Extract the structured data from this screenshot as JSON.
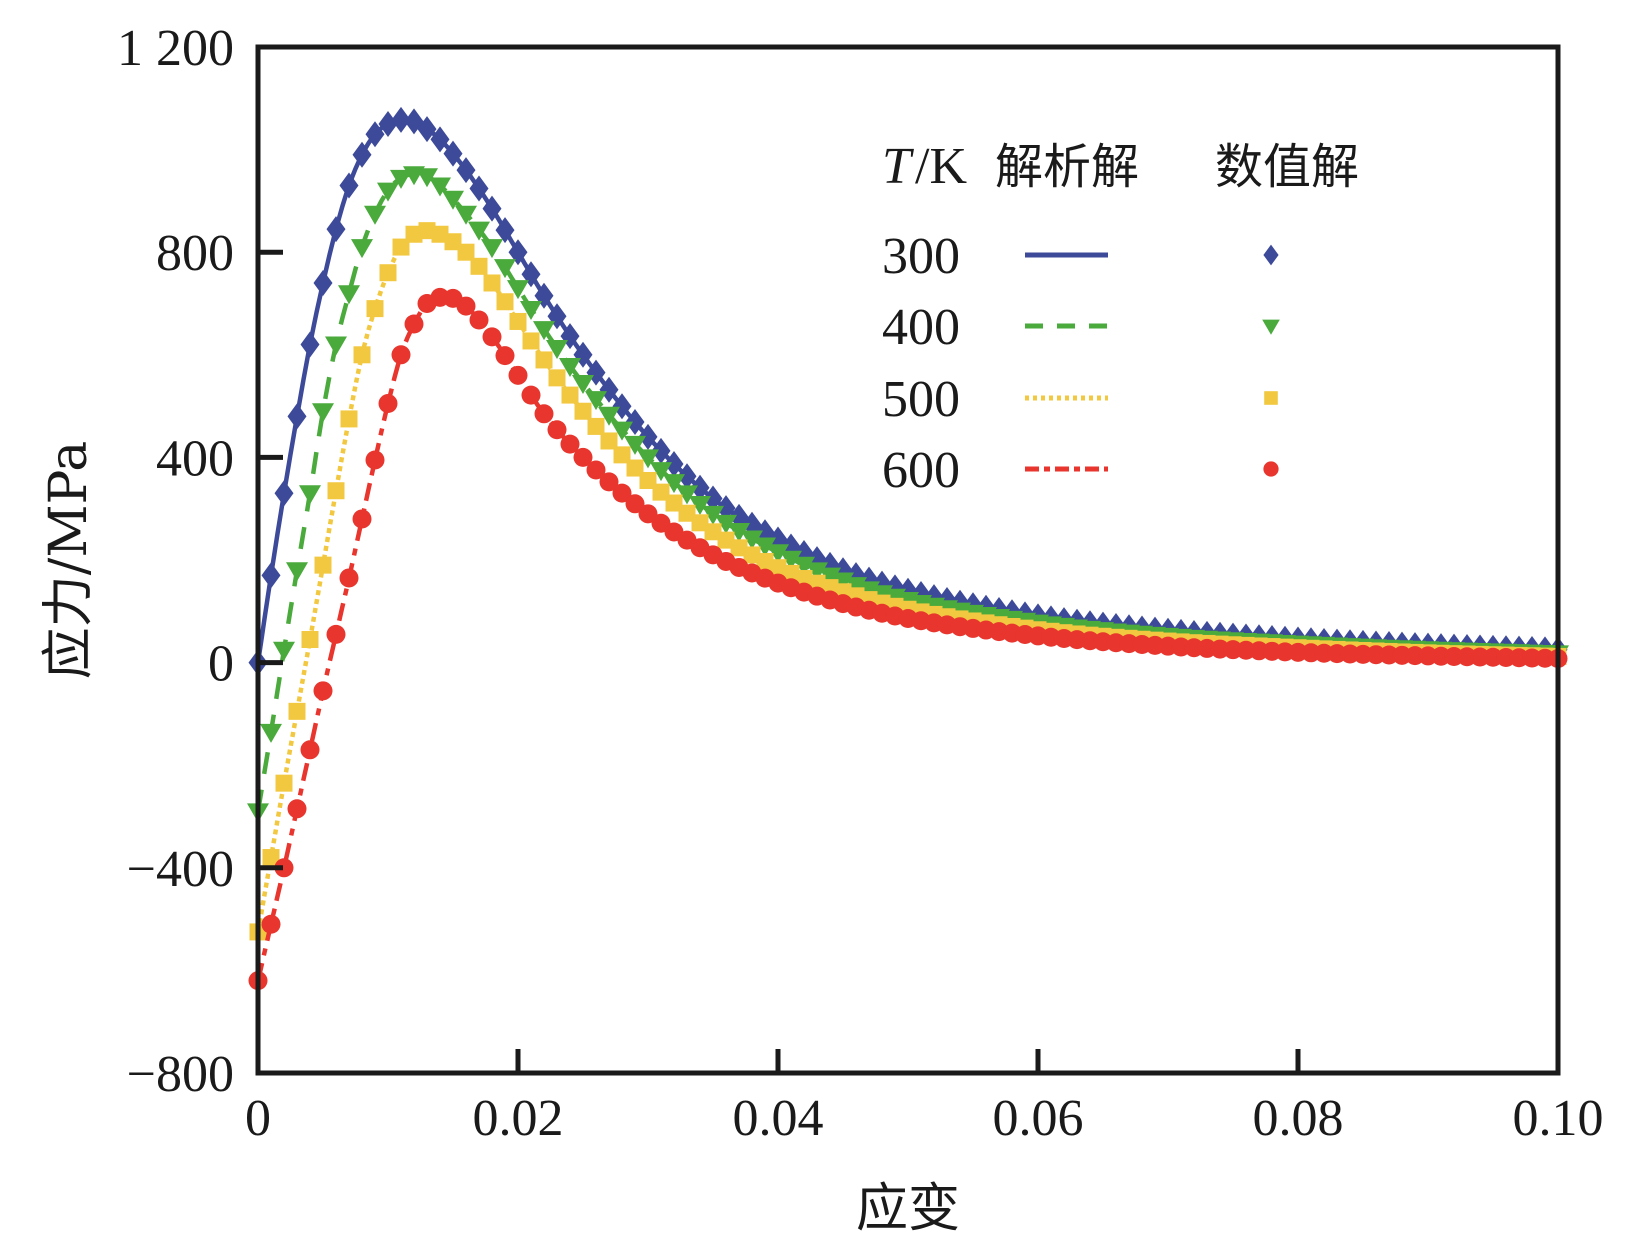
{
  "chart_data": {
    "type": "line",
    "title": "",
    "xlabel": "应变",
    "ylabel": "应力/MPa",
    "xlim": [
      0,
      0.1
    ],
    "ylim": [
      -800,
      1200
    ],
    "xticks": [
      0,
      0.02,
      0.04,
      0.06,
      0.08,
      0.1
    ],
    "xtick_labels": [
      "0",
      "0.02",
      "0.04",
      "0.06",
      "0.08",
      "0.10"
    ],
    "yticks": [
      -800,
      -400,
      0,
      400,
      800,
      1200
    ],
    "ytick_labels": [
      "−800",
      "−400",
      "0",
      "400",
      "800",
      "1 200"
    ],
    "grid": false,
    "legend": {
      "placement": "top-right",
      "header": {
        "variable": "T",
        "unit": "/K",
        "analytic": "解析解",
        "numeric": "数值解"
      },
      "entries": [
        "300",
        "400",
        "500",
        "600"
      ]
    },
    "marker_step": 0.001,
    "series": [
      {
        "name": "300",
        "color": "#3d4a9a",
        "line_style": "solid",
        "marker": "diamond",
        "x": [
          0,
          0.001,
          0.002,
          0.003,
          0.004,
          0.005,
          0.006,
          0.007,
          0.008,
          0.009,
          0.01,
          0.011,
          0.012,
          0.013,
          0.014,
          0.016,
          0.018,
          0.02,
          0.022,
          0.025,
          0.03,
          0.035,
          0.04,
          0.045,
          0.05,
          0.06,
          0.07,
          0.08,
          0.09,
          0.1
        ],
        "y": [
          0,
          170,
          330,
          480,
          620,
          740,
          845,
          930,
          990,
          1030,
          1050,
          1058,
          1055,
          1040,
          1020,
          960,
          885,
          800,
          715,
          600,
          440,
          320,
          240,
          180,
          140,
          90,
          62,
          45,
          33,
          25
        ]
      },
      {
        "name": "400",
        "color": "#4aaa3c",
        "line_style": "dashed",
        "marker": "triangle-down",
        "x": [
          0,
          0.001,
          0.002,
          0.003,
          0.004,
          0.005,
          0.006,
          0.007,
          0.008,
          0.009,
          0.01,
          0.011,
          0.012,
          0.013,
          0.014,
          0.016,
          0.018,
          0.02,
          0.022,
          0.025,
          0.03,
          0.035,
          0.04,
          0.045,
          0.05,
          0.06,
          0.07,
          0.08,
          0.09,
          0.1
        ],
        "y": [
          -290,
          -135,
          25,
          180,
          330,
          490,
          620,
          720,
          810,
          875,
          920,
          945,
          952,
          948,
          930,
          875,
          810,
          730,
          650,
          545,
          400,
          290,
          215,
          160,
          122,
          78,
          52,
          37,
          26,
          18
        ]
      },
      {
        "name": "500",
        "color": "#f2c840",
        "line_style": "dotted",
        "marker": "square",
        "x": [
          0,
          0.001,
          0.002,
          0.003,
          0.004,
          0.005,
          0.006,
          0.007,
          0.008,
          0.009,
          0.01,
          0.011,
          0.012,
          0.013,
          0.014,
          0.016,
          0.018,
          0.02,
          0.022,
          0.025,
          0.03,
          0.035,
          0.04,
          0.045,
          0.05,
          0.06,
          0.07,
          0.08,
          0.09,
          0.1
        ],
        "y": [
          -525,
          -380,
          -235,
          -95,
          45,
          190,
          335,
          475,
          600,
          690,
          760,
          810,
          835,
          842,
          835,
          800,
          740,
          665,
          590,
          490,
          355,
          255,
          185,
          138,
          104,
          64,
          42,
          29,
          19,
          12
        ]
      },
      {
        "name": "600",
        "color": "#e8352d",
        "line_style": "dashdot",
        "marker": "circle",
        "x": [
          0,
          0.001,
          0.002,
          0.003,
          0.004,
          0.005,
          0.006,
          0.007,
          0.008,
          0.009,
          0.01,
          0.011,
          0.012,
          0.013,
          0.014,
          0.015,
          0.016,
          0.018,
          0.02,
          0.022,
          0.025,
          0.03,
          0.035,
          0.04,
          0.045,
          0.05,
          0.06,
          0.07,
          0.08,
          0.09,
          0.1
        ],
        "y": [
          -620,
          -510,
          -400,
          -285,
          -170,
          -55,
          55,
          165,
          280,
          395,
          505,
          600,
          660,
          700,
          712,
          710,
          695,
          635,
          560,
          485,
          400,
          290,
          210,
          155,
          115,
          86,
          52,
          32,
          20,
          13,
          8
        ]
      }
    ]
  }
}
